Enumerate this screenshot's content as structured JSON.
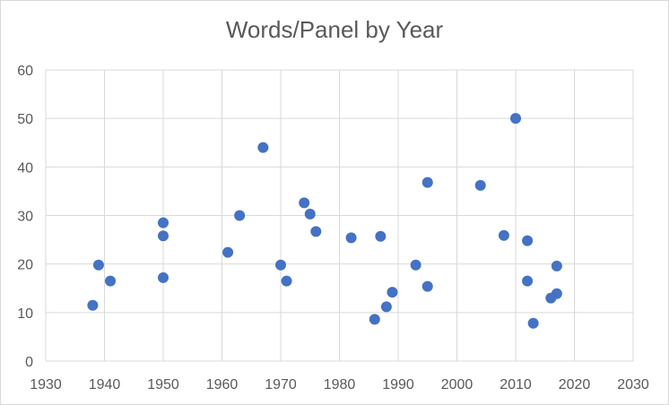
{
  "chart_data": {
    "type": "scatter",
    "title": "Words/Panel by Year",
    "xlabel": "",
    "ylabel": "",
    "xlim": [
      1930,
      2030
    ],
    "ylim": [
      0,
      60
    ],
    "x_ticks": [
      "1930",
      "1940",
      "1950",
      "1960",
      "1970",
      "1980",
      "1990",
      "2000",
      "2010",
      "2020",
      "2030"
    ],
    "y_ticks": [
      "0",
      "10",
      "20",
      "30",
      "40",
      "50",
      "60"
    ],
    "grid": true,
    "marker_color": "#4472C4",
    "points": [
      {
        "x": 1938,
        "y": 11.5
      },
      {
        "x": 1939,
        "y": 19.8
      },
      {
        "x": 1941,
        "y": 16.5
      },
      {
        "x": 1950,
        "y": 28.5
      },
      {
        "x": 1950,
        "y": 25.8
      },
      {
        "x": 1950,
        "y": 17.2
      },
      {
        "x": 1961,
        "y": 22.4
      },
      {
        "x": 1963,
        "y": 30.0
      },
      {
        "x": 1967,
        "y": 44.0
      },
      {
        "x": 1970,
        "y": 19.8
      },
      {
        "x": 1971,
        "y": 16.5
      },
      {
        "x": 1974,
        "y": 32.6
      },
      {
        "x": 1975,
        "y": 30.3
      },
      {
        "x": 1976,
        "y": 26.7
      },
      {
        "x": 1982,
        "y": 25.4
      },
      {
        "x": 1986,
        "y": 8.6
      },
      {
        "x": 1987,
        "y": 25.7
      },
      {
        "x": 1988,
        "y": 11.2
      },
      {
        "x": 1989,
        "y": 14.2
      },
      {
        "x": 1993,
        "y": 19.8
      },
      {
        "x": 1995,
        "y": 36.8
      },
      {
        "x": 1995,
        "y": 15.4
      },
      {
        "x": 2004,
        "y": 36.2
      },
      {
        "x": 2008,
        "y": 25.9
      },
      {
        "x": 2010,
        "y": 50.0
      },
      {
        "x": 2012,
        "y": 24.8
      },
      {
        "x": 2012,
        "y": 16.5
      },
      {
        "x": 2013,
        "y": 7.8
      },
      {
        "x": 2016,
        "y": 13.0
      },
      {
        "x": 2017,
        "y": 13.9
      },
      {
        "x": 2017,
        "y": 19.6
      }
    ]
  }
}
